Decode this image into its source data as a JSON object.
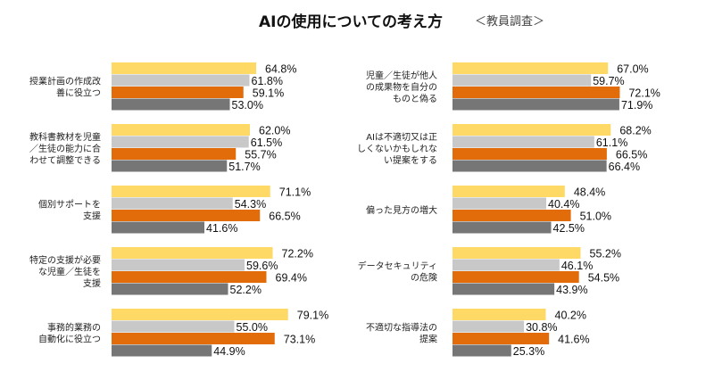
{
  "title": "AIの使用についての考え方",
  "subtitle": "＜教員調査＞",
  "chart_data": [
    {
      "type": "bar",
      "orientation": "horizontal",
      "categories": [
        [
          "授業計画の作成改",
          "善に役立つ"
        ],
        [
          "教科書教材を児童",
          "／生徒の能力に合",
          "わせて調整できる"
        ],
        [
          "個別サポートを",
          "支援"
        ],
        [
          "特定の支援が必要",
          "な児童／生徒を",
          "支援"
        ],
        [
          "事務的業務の",
          "自動化に役立つ"
        ]
      ],
      "series": [
        {
          "color": "#FFD966",
          "values": [
            64.8,
            62.0,
            71.1,
            72.2,
            79.1
          ]
        },
        {
          "color": "#C8C8C8",
          "values": [
            61.8,
            61.5,
            54.3,
            59.6,
            55.0
          ]
        },
        {
          "color": "#E36C0A",
          "values": [
            59.1,
            55.7,
            66.5,
            69.4,
            73.1
          ]
        },
        {
          "color": "#767676",
          "values": [
            53.0,
            51.7,
            41.6,
            52.2,
            44.9
          ]
        }
      ],
      "unit": "%"
    },
    {
      "type": "bar",
      "orientation": "horizontal",
      "categories": [
        [
          "児童／生徒が他人",
          "の成果物を自分の",
          "ものと偽る"
        ],
        [
          "AIは不適切又は正",
          "しくないかもしれな",
          "い提案をする"
        ],
        [
          "偏った見方の増大"
        ],
        [
          "データセキュリティ",
          "の危険"
        ],
        [
          "不適切な指導法の",
          "提案"
        ]
      ],
      "series": [
        {
          "color": "#FFD966",
          "values": [
            67.0,
            68.2,
            48.4,
            55.2,
            40.2
          ]
        },
        {
          "color": "#C8C8C8",
          "values": [
            59.7,
            61.1,
            40.4,
            46.1,
            30.8
          ]
        },
        {
          "color": "#E36C0A",
          "values": [
            72.1,
            66.5,
            51.0,
            54.5,
            41.6
          ]
        },
        {
          "color": "#767676",
          "values": [
            71.9,
            66.4,
            42.5,
            43.9,
            25.3
          ]
        }
      ],
      "unit": "%"
    }
  ]
}
